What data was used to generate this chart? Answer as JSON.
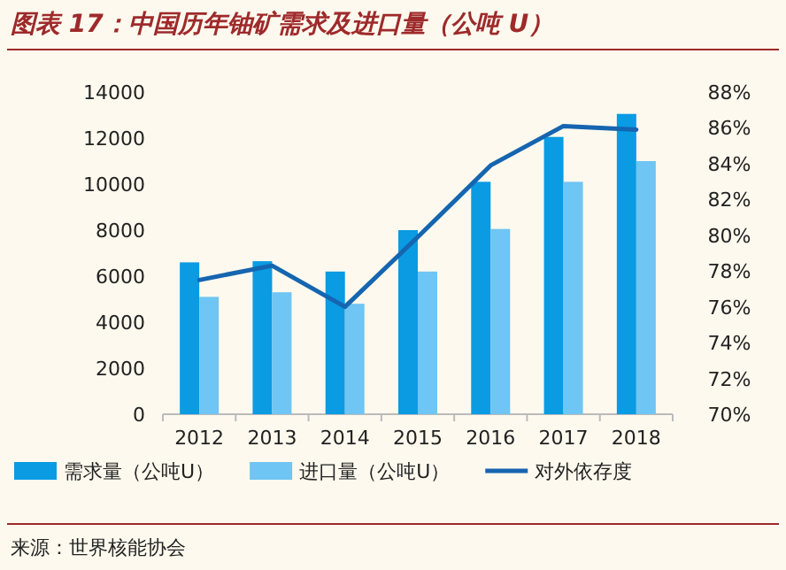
{
  "chart_data": {
    "type": "bar",
    "title": "图表 17：中国历年铀矿需求及进口量（公吨 U）",
    "categories": [
      "2012",
      "2013",
      "2014",
      "2015",
      "2016",
      "2017",
      "2018"
    ],
    "series": [
      {
        "name": "需求量（公吨U）",
        "color": "#0a9be3",
        "values": [
          6600,
          6650,
          6200,
          8000,
          10100,
          12050,
          13050
        ]
      },
      {
        "name": "进口量（公吨U）",
        "color": "#6fc5f3",
        "values": [
          5100,
          5300,
          4800,
          6200,
          8050,
          10100,
          11000
        ]
      },
      {
        "name": "对外依存度",
        "type": "line",
        "axis": "y2",
        "color": "#1565b0",
        "values": [
          77.5,
          78.3,
          76.0,
          79.9,
          83.9,
          86.1,
          85.9
        ]
      }
    ],
    "ylim": [
      0,
      14000
    ],
    "yticks": [
      0,
      2000,
      4000,
      6000,
      8000,
      10000,
      12000,
      14000
    ],
    "y2lim": [
      70,
      88
    ],
    "y2ticks": [
      {
        "value": 70,
        "label": "70%"
      },
      {
        "value": 72,
        "label": "72%"
      },
      {
        "value": 74,
        "label": "74%"
      },
      {
        "value": 76,
        "label": "76%"
      },
      {
        "value": 78,
        "label": "78%"
      },
      {
        "value": 80,
        "label": "80%"
      },
      {
        "value": 82,
        "label": "82%"
      },
      {
        "value": 84,
        "label": "84%"
      },
      {
        "value": 86,
        "label": "86%"
      },
      {
        "value": 88,
        "label": "88%"
      }
    ],
    "legend": "bottom",
    "grid": false,
    "annotations": [
      "来源：世界核能协会"
    ]
  }
}
